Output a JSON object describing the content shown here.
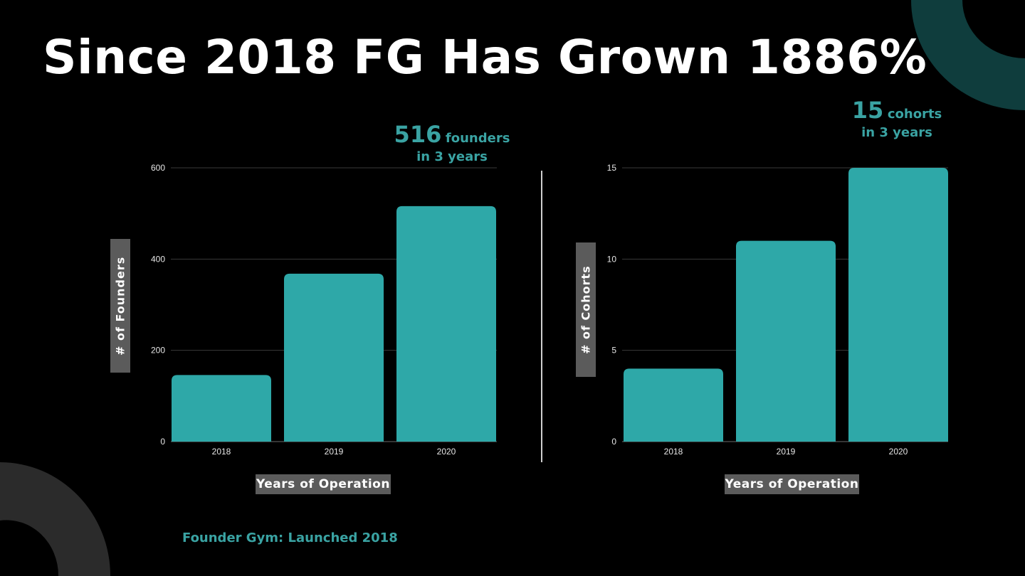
{
  "title": "Since 2018 FG Has Grown 1886%",
  "callouts": {
    "founders": {
      "number": "516",
      "unit": "founders",
      "line2": "in 3 years"
    },
    "cohorts": {
      "number": "15",
      "unit": "cohorts",
      "line2": "in 3 years"
    }
  },
  "footer": "Founder Gym: Launched 2018",
  "colors": {
    "bar": "#2ea8a8",
    "accent": "#3aa3a3",
    "label_box": "#5b5b5b",
    "deco_teal": "#0f3d3d",
    "deco_gray": "#2b2b2b"
  },
  "chart_data": [
    {
      "type": "bar",
      "categories": [
        "2018",
        "2019",
        "2020"
      ],
      "values": [
        146,
        368,
        516
      ],
      "xlabel": "Years of Operation",
      "ylabel": "# of Founders",
      "ylim": [
        0,
        600
      ],
      "yticks": [
        0,
        200,
        400,
        600
      ],
      "grid": true
    },
    {
      "type": "bar",
      "categories": [
        "2018",
        "2019",
        "2020"
      ],
      "values": [
        4,
        11,
        15
      ],
      "xlabel": "Years of Operation",
      "ylabel": "# of Cohorts",
      "ylim": [
        0,
        15
      ],
      "yticks": [
        0,
        5,
        10,
        15
      ],
      "grid": true
    }
  ]
}
